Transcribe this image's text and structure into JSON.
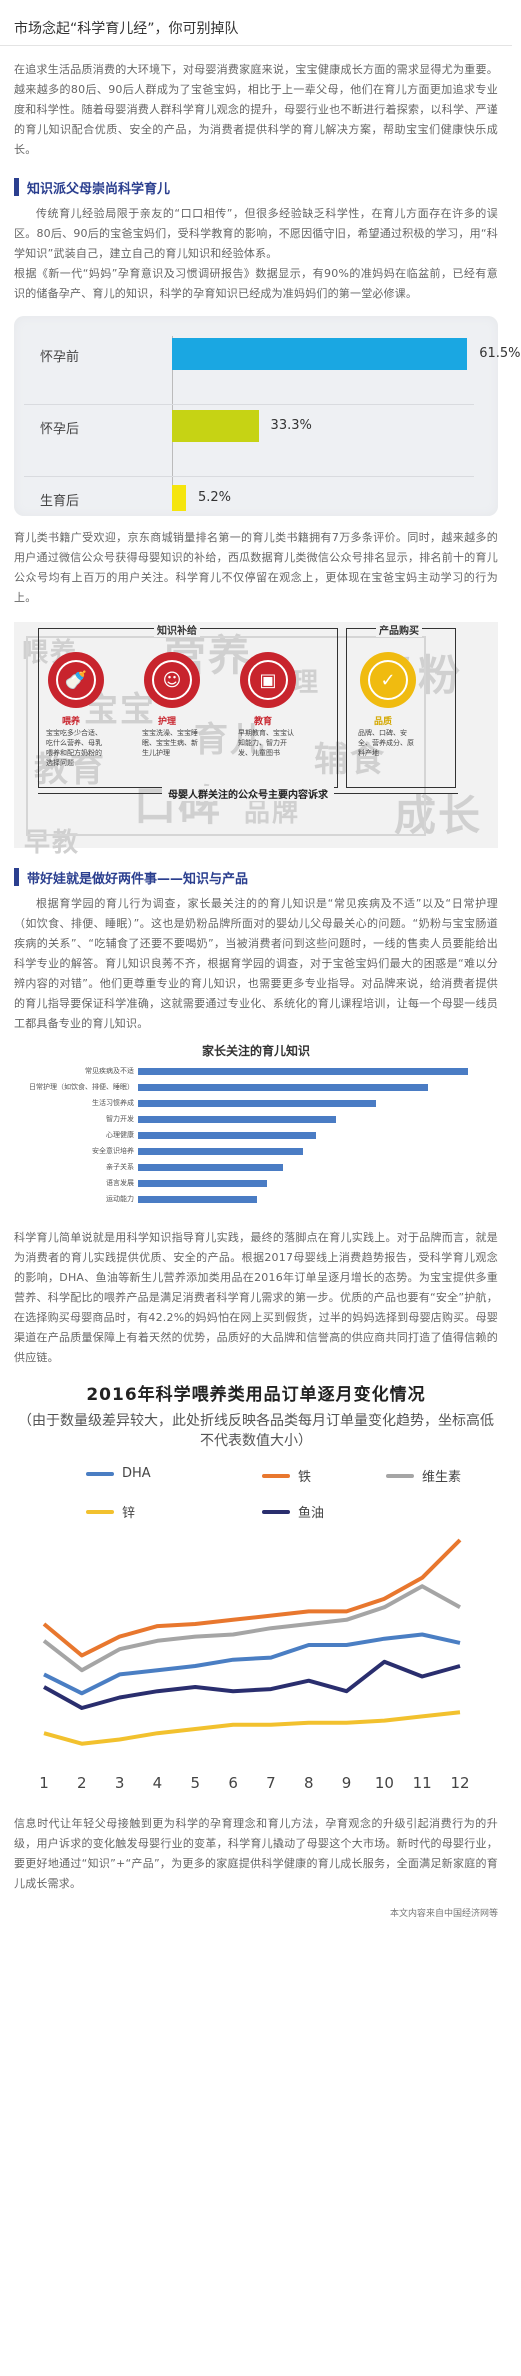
{
  "title": "市场念起“科学育儿经”，你可别掉队",
  "intro": "在追求生活品质消费的大环境下，对母婴消费家庭来说，宝宝健康成长方面的需求显得尤为重要。越来越多的80后、90后人群成为了宝爸宝妈，相比于上一辈父母，他们在育儿方面更加追求专业度和科学性。随着母婴消费人群科学育儿观念的提升，母婴行业也不断进行着探索，以科学、严谨的育儿知识配合优质、安全的产品，为消费者提供科学的育儿解决方案，帮助宝宝们健康快乐成长。",
  "section1": {
    "heading": "知识派父母崇尚科学育儿",
    "para1": "传统育儿经验局限于亲友的“口口相传”，但很多经验缺乏科学性，在育儿方面存在许多的误区。80后、90后的宝爸宝妈们，受科学教育的影响，不愿因循守旧，希望通过积极的学习，用“科学知识”武装自己，建立自己的育儿知识和经验体系。",
    "para2": "根据《新一代“妈妈”孕育意识及习惯调研报告》数据显示，有90%的准妈妈在临盆前，已经有意识的储备孕产、育儿的知识，科学的孕育知识已经成为准妈妈们的第一堂必修课。",
    "para3": "育儿类书籍广受欢迎，京东商城销量排名第一的育儿类书籍拥有7万多条评价。同时，越来越多的用户通过微信公众号获得母婴知识的补给，西瓜数据育儿类微信公众号排名显示，排名前十的育儿公众号均有上百万的用户关注。科学育儿不仅停留在观念上，更体现在宝爸宝妈主动学习的行为上。"
  },
  "chart_stage": {
    "type": "bar",
    "categories": [
      "怀孕前",
      "怀孕后",
      "生育后"
    ],
    "values": [
      61.5,
      33.3,
      5.2
    ],
    "labels": [
      "61.5%",
      "33.3%",
      "5.2%"
    ],
    "xlim": [
      0,
      100
    ],
    "colors": [
      "#1aa7e2",
      "#c6d314",
      "#f5e50d"
    ]
  },
  "fig_parents": {
    "section_knowledge": "知识补给",
    "section_product": "产品购买",
    "items": [
      {
        "label": "喂养",
        "note": "宝宝吃多少合适、吃什么营养、母乳喂养和配方奶粉的选择问题"
      },
      {
        "label": "护理",
        "note": "宝宝洗澡、宝宝睡眠、宝宝生病、新生儿护理"
      },
      {
        "label": "教育",
        "note": "早期教育、宝宝认知能力、智力开发、儿童图书"
      },
      {
        "label": "品质",
        "note": "品牌、口碑、安全、营养成分、原料产地"
      }
    ],
    "footer": "母婴人群关注的公众号主要内容诉求",
    "cloud_words": [
      "喂养",
      "宝宝",
      "营养",
      "护理",
      "教育",
      "口碑",
      "品牌",
      "辅食",
      "奶粉",
      "早教",
      "育儿",
      "成长"
    ]
  },
  "section2": {
    "heading": "带好娃就是做好两件事——知识与产品",
    "para1": "根据育学园的育儿行为调查，家长最关注的的育儿知识是“常见疾病及不适”以及“日常护理（如饮食、排便、睡眠）”。这也是奶粉品牌所面对的婴幼儿父母最关心的问题。“奶粉与宝宝肠道疾病的关系”、“吃辅食了还要不要喝奶”，当被消费者问到这些问题时，一线的售卖人员要能给出科学专业的解答。育儿知识良莠不齐，根据育学园的调查，对于宝爸宝妈们最大的困惑是“难以分辨内容的对错”。他们更尊重专业的育儿知识，也需要更多专业指导。对品牌来说，给消费者提供的育儿指导要保证科学准确，这就需要通过专业化、系统化的育儿课程培训，让每一个母婴一线员工都具备专业的育儿知识。",
    "para2": "科学育儿简单说就是用科学知识指导育儿实践，最终的落脚点在育儿实践上。对于品牌而言，就是为消费者的育儿实践提供优质、安全的产品。根据2017母婴线上消费趋势报告，受科学育儿观念的影响，DHA、鱼油等新生儿营养添加类用品在2016年订单呈逐月增长的态势。为宝宝提供多重营养、科学配比的喂养产品是满足消费者科学育儿需求的第一步。优质的产品也要有“安全”护航，在选择购买母婴商品时，有42.2%的妈妈怕在网上买到假货，过半的妈妈选择到母婴店购买。母婴渠道在产品质量保障上有着天然的优势，品质好的大品牌和信誉高的供应商共同打造了值得信赖的供应链。"
  },
  "chart_concern": {
    "type": "bar",
    "title": "家长关注的育儿知识",
    "categories": [
      "常见疾病及不适",
      "日常护理（如饮食、排便、睡眠）",
      "生活习惯养成",
      "智力开发",
      "心理健康",
      "安全意识培养",
      "亲子关系",
      "语言发展",
      "运动能力"
    ],
    "values": [
      100,
      88,
      72,
      60,
      54,
      50,
      44,
      39,
      36
    ],
    "color": "#4a7cc4"
  },
  "chart_monthly": {
    "type": "line",
    "title": "2016年科学喂养类用品订单逐月变化情况",
    "subtitle": "（由于数量级差异较大，此处折线反映各品类每月订单量变化趋势，坐标高低不代表数值大小）",
    "x": [
      1,
      2,
      3,
      4,
      5,
      6,
      7,
      8,
      9,
      10,
      11,
      12
    ],
    "series": [
      {
        "name": "DHA",
        "color": "#4a7ec3",
        "values": [
          36,
          27,
          36,
          38,
          40,
          43,
          44,
          50,
          50,
          53,
          55,
          51
        ]
      },
      {
        "name": "铁",
        "color": "#e8772e",
        "values": [
          60,
          45,
          54,
          59,
          60,
          62,
          64,
          66,
          66,
          72,
          82,
          100
        ]
      },
      {
        "name": "维生素",
        "color": "#a5a5a5",
        "values": [
          52,
          38,
          48,
          52,
          54,
          55,
          58,
          60,
          62,
          68,
          78,
          68
        ]
      },
      {
        "name": "锌",
        "color": "#f2c12e",
        "values": [
          8,
          3,
          5,
          8,
          10,
          12,
          12,
          13,
          13,
          14,
          16,
          18
        ]
      },
      {
        "name": "鱼油",
        "color": "#2a2e6e",
        "values": [
          30,
          20,
          25,
          28,
          30,
          28,
          29,
          33,
          28,
          42,
          35,
          40
        ]
      }
    ]
  },
  "closing": "信息时代让年轻父母接触到更为科学的孕育理念和育儿方法，孕育观念的升级引起消费行为的升级，用户诉求的变化触发母婴行业的变革，科学育儿撬动了母婴这个大市场。新时代的母婴行业，要更好地通过“知识”+“产品”，为更多的家庭提供科学健康的育儿成长服务，全面满足新家庭的育儿成长需求。",
  "source": "本文内容来自中国经济网等"
}
